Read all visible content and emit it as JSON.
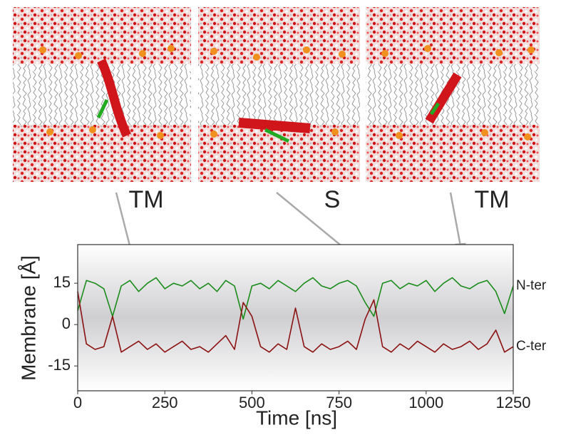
{
  "chart_data": {
    "type": "line",
    "annotations": [
      "TM",
      "S",
      "TM"
    ],
    "x_label": "Time [ns]",
    "y_label": "Membrane [Å]",
    "x": [
      0,
      25,
      50,
      75,
      100,
      125,
      150,
      175,
      200,
      225,
      250,
      275,
      300,
      325,
      350,
      375,
      400,
      425,
      450,
      475,
      500,
      525,
      550,
      575,
      600,
      625,
      650,
      675,
      700,
      725,
      750,
      775,
      800,
      825,
      850,
      875,
      900,
      925,
      950,
      975,
      1000,
      1025,
      1050,
      1075,
      1100,
      1125,
      1150,
      1175,
      1200,
      1225,
      1250
    ],
    "series": [
      {
        "name": "N-ter",
        "color": "#1a8c1a",
        "values": [
          5,
          16,
          15,
          13,
          3,
          14,
          16,
          12,
          15,
          17,
          13,
          15,
          14,
          16,
          13,
          15,
          12,
          16,
          14,
          2,
          14,
          15,
          13,
          16,
          14,
          12,
          15,
          17,
          14,
          13,
          15,
          16,
          14,
          8,
          3,
          15,
          16,
          13,
          15,
          14,
          16,
          12,
          15,
          17,
          14,
          13,
          15,
          16,
          12,
          4,
          14
        ]
      },
      {
        "name": "C-ter",
        "color": "#8b1010",
        "values": [
          12,
          -7,
          -9,
          -8,
          3,
          -10,
          -8,
          -6,
          -9,
          -7,
          -10,
          -8,
          -6,
          -9,
          -8,
          -10,
          -7,
          -4,
          -9,
          8,
          3,
          -8,
          -10,
          -7,
          -9,
          6,
          -8,
          -10,
          -7,
          -9,
          -8,
          -6,
          -9,
          2,
          9,
          -8,
          -10,
          -7,
          -9,
          -6,
          -8,
          -10,
          -7,
          -9,
          -8,
          -6,
          -9,
          -7,
          -2,
          -10,
          -8
        ]
      }
    ],
    "xlim": [
      0,
      1250
    ],
    "xticks": [
      0,
      250,
      500,
      750,
      1000,
      1250
    ],
    "ylim": [
      -24,
      29
    ],
    "yticks": [
      -15,
      0,
      15
    ]
  }
}
